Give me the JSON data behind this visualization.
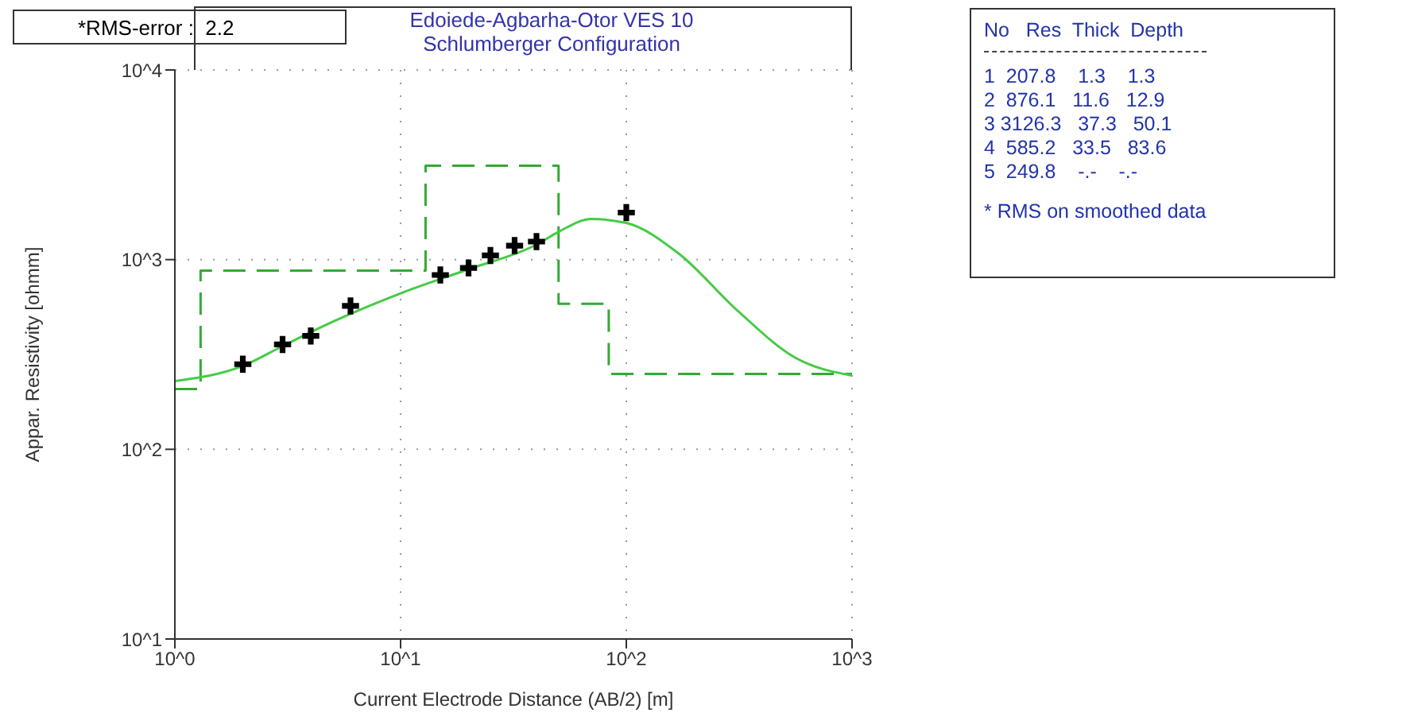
{
  "chart_data": {
    "type": "line",
    "title": "Edoiede-Agbarha-Otor VES 10",
    "subtitle": "Schlumberger Configuration",
    "xlabel": "Current Electrode Distance (AB/2) [m]",
    "ylabel": "Appar. Resistivity [ohmm]",
    "log": "xy",
    "grid": true,
    "xlim": [
      1,
      1000
    ],
    "xticks": [
      {
        "value": 1,
        "label": "10^0"
      },
      {
        "value": 10,
        "label": "10^1"
      },
      {
        "value": 100,
        "label": "10^2"
      },
      {
        "value": 1000,
        "label": "10^3"
      }
    ],
    "ylim": [
      10,
      10000
    ],
    "yticks": [
      {
        "value": 10,
        "label": "10^1"
      },
      {
        "value": 100,
        "label": "10^2"
      },
      {
        "value": 1000,
        "label": "10^3"
      },
      {
        "value": 10000,
        "label": "10^4"
      }
    ],
    "series": [
      {
        "type": "step",
        "color": "#33aa33",
        "line_style": "dashed",
        "x": [
          1,
          1.3,
          12.9,
          50.1,
          83.6,
          1000
        ],
        "values": [
          207.8,
          876.1,
          3126.3,
          585.2,
          249.8,
          249.8
        ]
      },
      {
        "color": "#44cc44",
        "x": [
          1,
          2,
          3,
          5,
          10,
          20,
          40,
          50,
          70,
          100,
          171,
          311,
          566,
          1000
        ],
        "values": [
          229,
          275,
          350,
          470,
          664,
          890,
          1200,
          1400,
          1637,
          1560,
          1074,
          538,
          302,
          245
        ]
      },
      {
        "type": "scatter",
        "color": "#000000",
        "marker": "cross",
        "x": [
          2,
          3,
          4,
          6,
          15,
          20,
          25,
          32,
          40,
          100
        ],
        "values": [
          281,
          357,
          396,
          570,
          830,
          904,
          1052,
          1185,
          1244,
          1770
        ]
      }
    ],
    "annotations": [
      "*RMS-error :  2.2",
      "No   Res  Thick  Depth",
      "1  207.8    1.3    1.3",
      "2  876.1   11.6   12.9",
      "3 3126.3   37.3   50.1",
      "4  585.2   33.5   83.6",
      "5  249.8    -.-    -.-",
      "* RMS on smoothed data"
    ]
  }
}
